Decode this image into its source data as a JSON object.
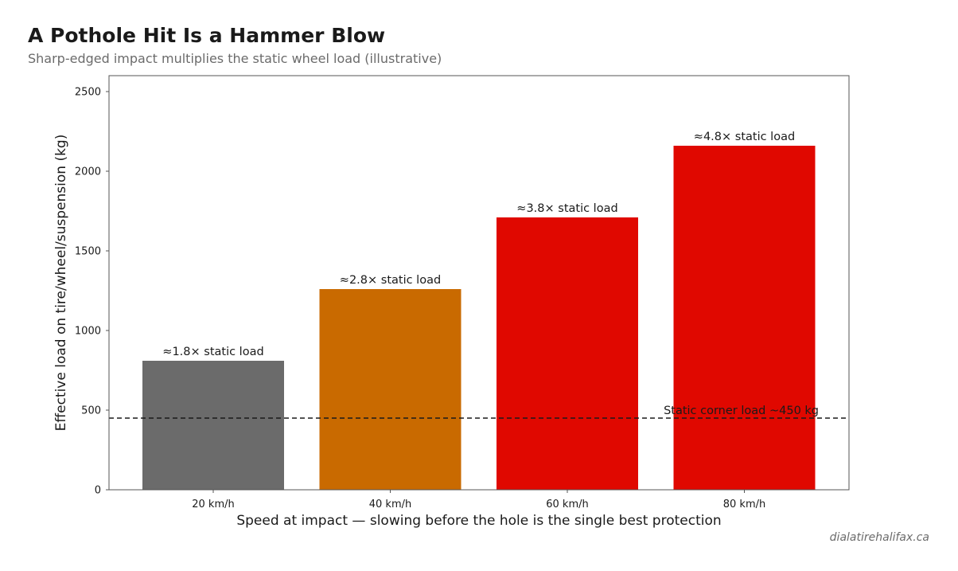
{
  "header": {
    "title": "A Pothole Hit Is a Hammer Blow",
    "subtitle": "Sharp-edged impact multiplies the static wheel load (illustrative)"
  },
  "footer": {
    "source": "dialatirehalifax.ca"
  },
  "chart_data": {
    "type": "bar",
    "categories": [
      "20 km/h",
      "40 km/h",
      "60 km/h",
      "80 km/h"
    ],
    "values": [
      810,
      1260,
      1710,
      2160
    ],
    "bar_colors": [
      "#6b6b6b",
      "#c96a00",
      "#e00800",
      "#e00800"
    ],
    "data_labels": [
      "≈1.8× static load",
      "≈2.8× static load",
      "≈3.8× static load",
      "≈4.8× static load"
    ],
    "xlabel": "Speed at impact — slowing before the hole is the single best protection",
    "ylabel": "Effective load on tire/wheel/suspension (kg)",
    "ylim": [
      0,
      2600
    ],
    "yticks": [
      0,
      500,
      1000,
      1500,
      2000,
      2500
    ],
    "reference_line": {
      "value": 450,
      "label": "Static corner load ~450 kg",
      "style": "dashed",
      "color": "#1a1a1a"
    },
    "grid": false,
    "legend": "none"
  }
}
